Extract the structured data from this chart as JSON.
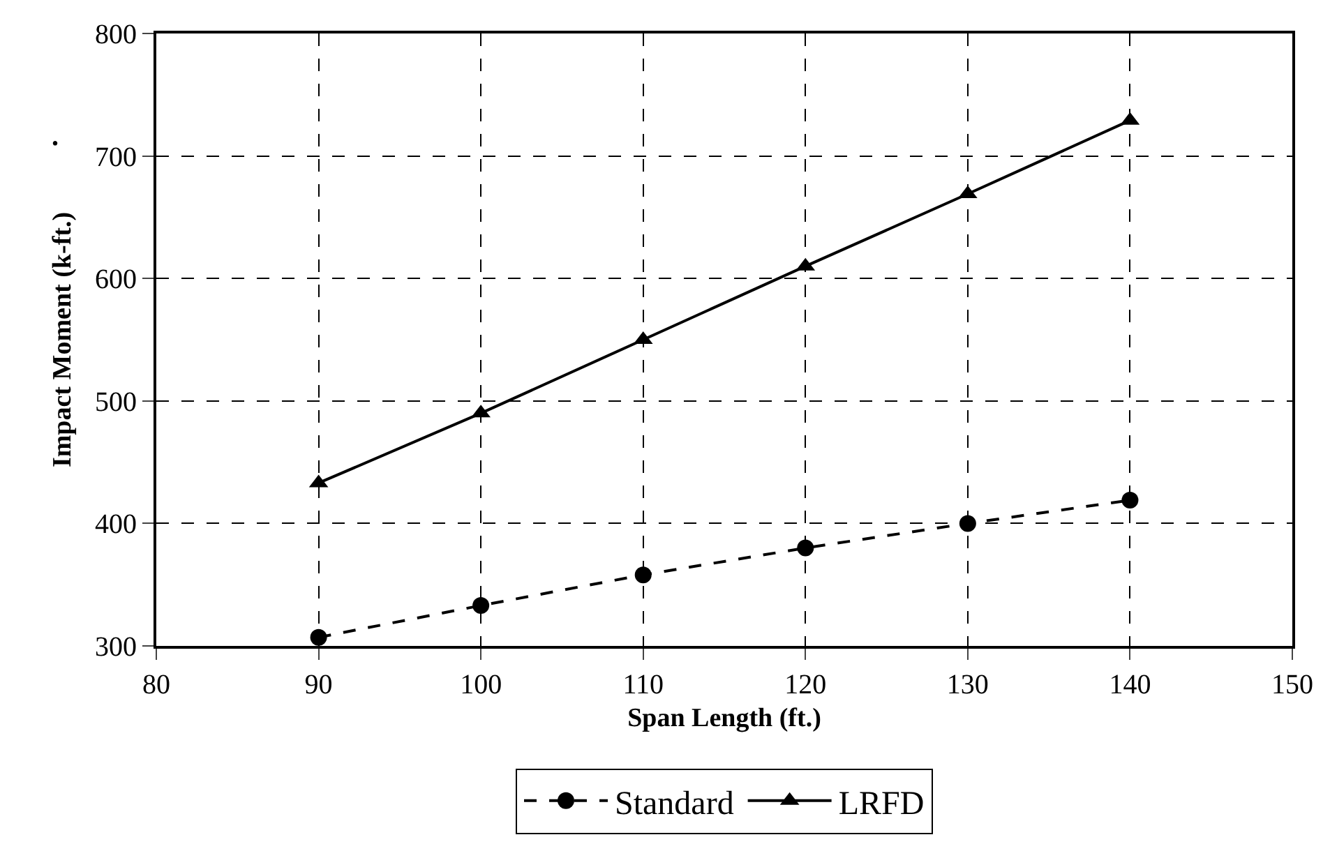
{
  "chart_data": {
    "type": "line",
    "xlabel": "Span Length (ft.)",
    "ylabel": "Impact Moment (k-ft.)",
    "x": [
      90,
      100,
      110,
      120,
      130,
      140
    ],
    "series": [
      {
        "name": "Standard",
        "color": "#000000",
        "marker": "circle",
        "line_style": "dashed",
        "values": [
          307,
          333,
          358,
          380,
          400,
          419
        ]
      },
      {
        "name": "LRFD",
        "color": "#000000",
        "marker": "triangle",
        "line_style": "solid",
        "values": [
          433,
          490,
          550,
          610,
          669,
          729
        ]
      }
    ],
    "xlim": [
      80,
      150
    ],
    "xticks": [
      80,
      90,
      100,
      110,
      120,
      130,
      140,
      150
    ],
    "ylim": [
      300,
      800
    ],
    "yticks": [
      300,
      400,
      500,
      600,
      700,
      800
    ],
    "grid": true,
    "legend": "bottom",
    "annotations": [
      "."
    ]
  }
}
